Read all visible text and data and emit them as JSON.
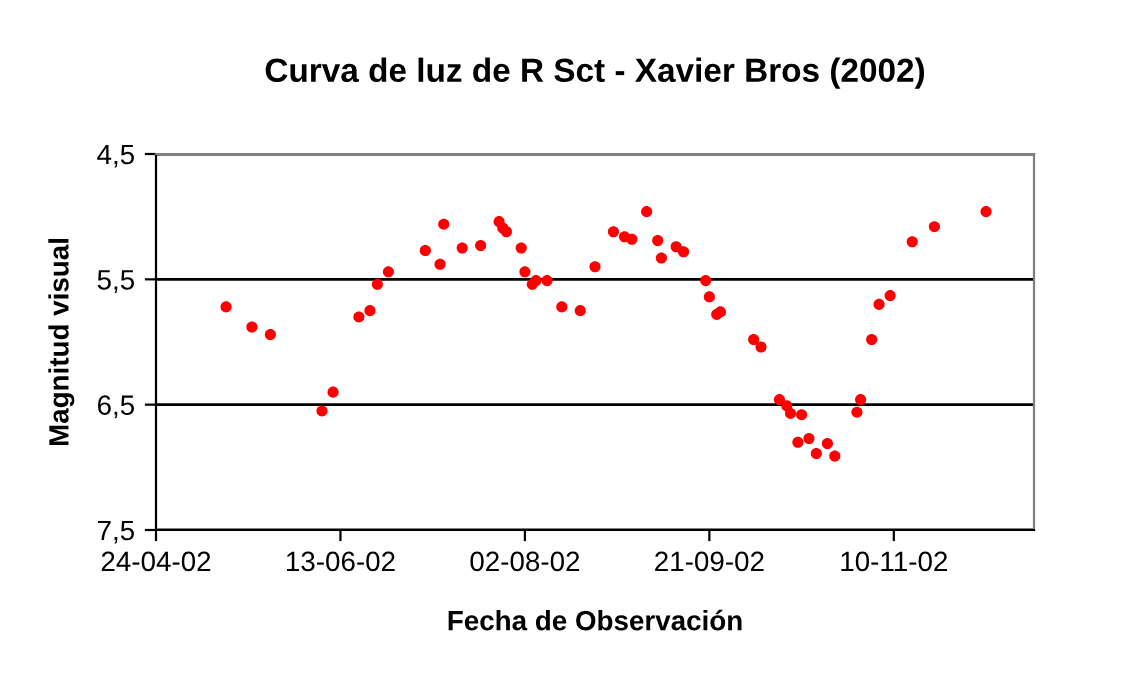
{
  "chart_data": {
    "type": "scatter",
    "title": "Curva de luz de R Sct - Xavier Bros (2002)",
    "xlabel": "Fecha de Observación",
    "ylabel": "Magnitud visual",
    "series": [
      {
        "color": "#ff0000",
        "x": [
          "2002-05-13",
          "2002-05-20",
          "2002-05-25",
          "2002-06-08",
          "2002-06-11",
          "2002-06-18",
          "2002-06-21",
          "2002-06-23",
          "2002-06-26",
          "2002-07-06",
          "2002-07-10",
          "2002-07-11",
          "2002-07-16",
          "2002-07-21",
          "2002-07-26",
          "2002-07-27",
          "2002-07-28",
          "2002-08-01",
          "2002-08-02",
          "2002-08-04",
          "2002-08-05",
          "2002-08-08",
          "2002-08-12",
          "2002-08-17",
          "2002-08-21",
          "2002-08-26",
          "2002-08-29",
          "2002-08-31",
          "2002-09-04",
          "2002-09-07",
          "2002-09-08",
          "2002-09-12",
          "2002-09-14",
          "2002-09-20",
          "2002-09-21",
          "2002-09-23",
          "2002-09-24",
          "2002-10-03",
          "2002-10-05",
          "2002-10-10",
          "2002-10-12",
          "2002-10-13",
          "2002-10-15",
          "2002-10-16",
          "2002-10-18",
          "2002-10-20",
          "2002-10-23",
          "2002-10-25",
          "2002-10-31",
          "2002-11-01",
          "2002-11-04",
          "2002-11-06",
          "2002-11-09",
          "2002-11-15",
          "2002-11-21",
          "2002-12-05"
        ],
        "values": [
          5.72,
          5.88,
          5.94,
          6.55,
          6.4,
          5.8,
          5.75,
          5.54,
          5.44,
          5.27,
          5.38,
          5.06,
          5.25,
          5.23,
          5.04,
          5.09,
          5.12,
          5.25,
          5.44,
          5.54,
          5.51,
          5.51,
          5.72,
          5.75,
          5.4,
          5.12,
          5.16,
          5.18,
          4.96,
          5.19,
          5.33,
          5.24,
          5.28,
          5.51,
          5.64,
          5.78,
          5.76,
          5.98,
          6.04,
          6.46,
          6.51,
          6.57,
          6.8,
          6.58,
          6.77,
          6.89,
          6.81,
          6.91,
          6.56,
          6.46,
          5.98,
          5.7,
          5.63,
          5.2,
          5.08,
          4.96
        ]
      }
    ],
    "xlim": [
      "2002-04-24",
      "2002-12-18"
    ],
    "xticks": [
      {
        "value": "2002-04-24",
        "label": "24-04-02"
      },
      {
        "value": "2002-06-13",
        "label": "13-06-02"
      },
      {
        "value": "2002-08-02",
        "label": "02-08-02"
      },
      {
        "value": "2002-09-21",
        "label": "21-09-02"
      },
      {
        "value": "2002-11-10",
        "label": "10-11-02"
      }
    ],
    "ylim": [
      7.5,
      4.5
    ],
    "yticks": [
      {
        "value": 4.5,
        "label": "4,5"
      },
      {
        "value": 5.5,
        "label": "5,5"
      },
      {
        "value": 6.5,
        "label": "6,5"
      },
      {
        "value": 7.5,
        "label": "7,5"
      }
    ],
    "grid": "y",
    "marker": "circle",
    "legend": false
  }
}
